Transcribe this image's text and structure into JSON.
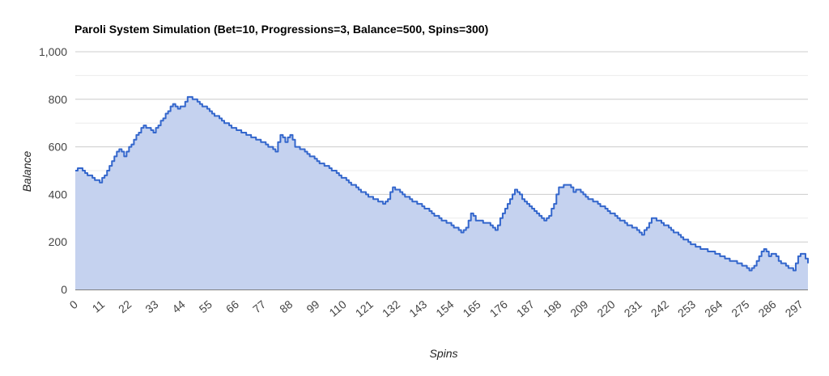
{
  "chart_data": {
    "type": "area",
    "title": "Paroli System Simulation (Bet=10, Progressions=3, Balance=500, Spins=300)",
    "xlabel": "Spins",
    "ylabel": "Balance",
    "ylim": [
      0,
      1000
    ],
    "yticks": [
      0,
      200,
      400,
      600,
      800,
      1000
    ],
    "ytick_labels": [
      "0",
      "200",
      "400",
      "600",
      "800",
      "1,000"
    ],
    "xlim": [
      0,
      300
    ],
    "xticks": [
      0,
      11,
      22,
      33,
      44,
      55,
      66,
      77,
      88,
      99,
      110,
      121,
      132,
      143,
      154,
      165,
      176,
      187,
      198,
      209,
      220,
      231,
      242,
      253,
      264,
      275,
      286,
      297
    ],
    "grid": true,
    "legend": "none",
    "colors": {
      "line": "#3366cc",
      "fill": "#c5d2ef"
    },
    "series": [
      {
        "keypoints": [
          [
            0,
            500
          ],
          [
            2,
            510
          ],
          [
            4,
            490
          ],
          [
            8,
            460
          ],
          [
            10,
            450
          ],
          [
            12,
            480
          ],
          [
            16,
            560
          ],
          [
            18,
            590
          ],
          [
            20,
            560
          ],
          [
            24,
            630
          ],
          [
            28,
            690
          ],
          [
            32,
            660
          ],
          [
            36,
            720
          ],
          [
            40,
            780
          ],
          [
            42,
            760
          ],
          [
            44,
            770
          ],
          [
            46,
            810
          ],
          [
            50,
            790
          ],
          [
            55,
            750
          ],
          [
            60,
            710
          ],
          [
            66,
            670
          ],
          [
            72,
            640
          ],
          [
            78,
            610
          ],
          [
            82,
            580
          ],
          [
            84,
            650
          ],
          [
            86,
            620
          ],
          [
            88,
            650
          ],
          [
            90,
            600
          ],
          [
            94,
            580
          ],
          [
            99,
            540
          ],
          [
            104,
            510
          ],
          [
            108,
            480
          ],
          [
            112,
            450
          ],
          [
            116,
            420
          ],
          [
            120,
            390
          ],
          [
            124,
            370
          ],
          [
            126,
            360
          ],
          [
            128,
            380
          ],
          [
            130,
            430
          ],
          [
            134,
            400
          ],
          [
            138,
            370
          ],
          [
            142,
            350
          ],
          [
            146,
            320
          ],
          [
            150,
            290
          ],
          [
            154,
            270
          ],
          [
            158,
            240
          ],
          [
            160,
            260
          ],
          [
            162,
            320
          ],
          [
            164,
            290
          ],
          [
            168,
            280
          ],
          [
            170,
            270
          ],
          [
            172,
            250
          ],
          [
            175,
            320
          ],
          [
            178,
            380
          ],
          [
            180,
            420
          ],
          [
            184,
            370
          ],
          [
            188,
            330
          ],
          [
            192,
            290
          ],
          [
            194,
            310
          ],
          [
            196,
            360
          ],
          [
            198,
            430
          ],
          [
            202,
            440
          ],
          [
            204,
            410
          ],
          [
            206,
            420
          ],
          [
            210,
            380
          ],
          [
            214,
            360
          ],
          [
            218,
            330
          ],
          [
            222,
            300
          ],
          [
            226,
            270
          ],
          [
            230,
            250
          ],
          [
            232,
            230
          ],
          [
            234,
            260
          ],
          [
            236,
            300
          ],
          [
            240,
            280
          ],
          [
            244,
            250
          ],
          [
            248,
            220
          ],
          [
            252,
            190
          ],
          [
            256,
            170
          ],
          [
            260,
            160
          ],
          [
            264,
            140
          ],
          [
            268,
            120
          ],
          [
            272,
            110
          ],
          [
            276,
            80
          ],
          [
            278,
            100
          ],
          [
            280,
            140
          ],
          [
            282,
            170
          ],
          [
            284,
            140
          ],
          [
            286,
            150
          ],
          [
            288,
            120
          ],
          [
            292,
            90
          ],
          [
            294,
            80
          ],
          [
            296,
            140
          ],
          [
            298,
            150
          ],
          [
            300,
            110
          ]
        ]
      }
    ]
  }
}
